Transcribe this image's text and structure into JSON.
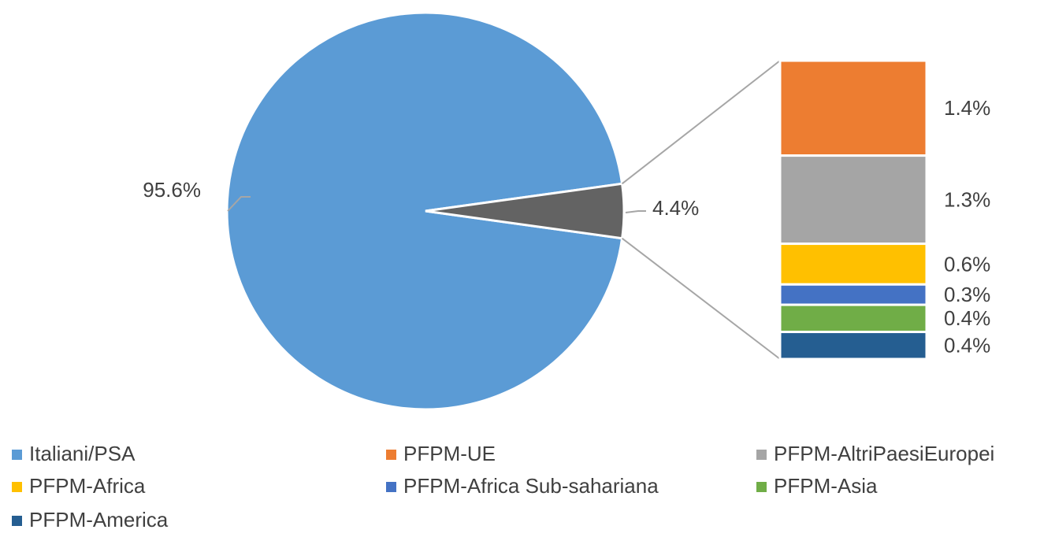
{
  "chart_data": {
    "type": "barofpie",
    "categories": [
      "Italiani/PSA",
      "PFPM-UE",
      "PFPM-AltriPaesiEuropei",
      "PFPM-Africa",
      "PFPM-Africa Sub-sahariana",
      "PFPM-Asia",
      "PFPM-America"
    ],
    "values": [
      95.6,
      1.4,
      1.3,
      0.6,
      0.3,
      0.4,
      0.4
    ],
    "value_labels": [
      "95.6%",
      "1.4%",
      "1.3%",
      "0.6%",
      "0.3%",
      "0.4%",
      "0.4%"
    ],
    "colors": [
      "#5b9bd5",
      "#ed7d31",
      "#a5a5a5",
      "#ffc000",
      "#4472c4",
      "#70ad47",
      "#255e91"
    ],
    "other_value": 4.4,
    "other_value_label": "4.4%",
    "other_color": "#636363",
    "legend": "bottom"
  }
}
